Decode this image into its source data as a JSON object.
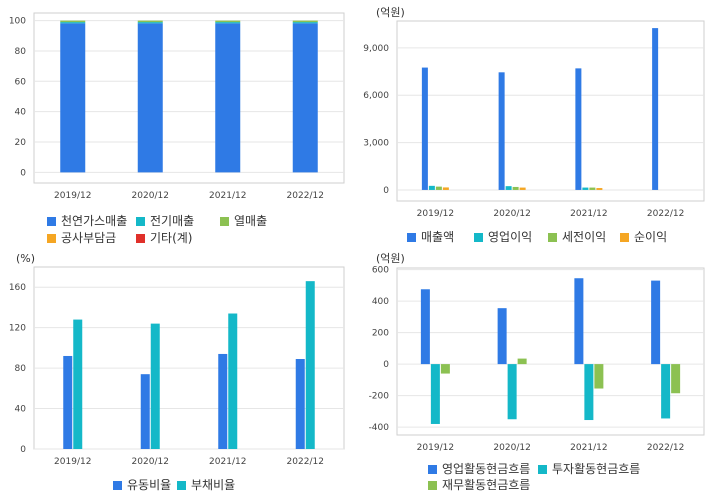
{
  "chart_data": [
    {
      "id": "c1",
      "type": "bar",
      "stacked": true,
      "unit": "",
      "categories": [
        "2019/12",
        "2020/12",
        "2021/12",
        "2022/12"
      ],
      "yticks": [
        0,
        20,
        40,
        60,
        80,
        100
      ],
      "ylim": [
        -7,
        105
      ],
      "grid": true,
      "series": [
        {
          "name": "천연가스매출",
          "color": "#2f7ae5",
          "values": [
            98.2,
            98.2,
            98.2,
            98.2
          ]
        },
        {
          "name": "전기매출",
          "color": "#14b8c8",
          "values": [
            0.8,
            0.8,
            0.8,
            0.8
          ]
        },
        {
          "name": "열매출",
          "color": "#8cc152",
          "values": [
            1.0,
            1.0,
            1.0,
            1.0
          ]
        },
        {
          "name": "공사부담금",
          "color": "#f5a623",
          "values": [
            0,
            0,
            0,
            0
          ]
        },
        {
          "name": "기타(계)",
          "color": "#e0302a",
          "values": [
            0,
            0,
            0,
            0
          ]
        }
      ]
    },
    {
      "id": "c2",
      "type": "bar",
      "stacked": false,
      "unit": "(억원)",
      "categories": [
        "2019/12",
        "2020/12",
        "2021/12",
        "2022/12"
      ],
      "yticks": [
        0,
        3000,
        6000,
        9000
      ],
      "ytick_labels": [
        "0",
        "3,000",
        "6,000",
        "9,000"
      ],
      "ylim": [
        -700,
        10700
      ],
      "grid": true,
      "series": [
        {
          "name": "매출액",
          "color": "#2f7ae5",
          "values": [
            7750,
            7450,
            7700,
            10250
          ]
        },
        {
          "name": "영업이익",
          "color": "#14b8c8",
          "values": [
            260,
            240,
            150,
            0
          ]
        },
        {
          "name": "세전이익",
          "color": "#8cc152",
          "values": [
            210,
            190,
            150,
            0
          ]
        },
        {
          "name": "순이익",
          "color": "#f5a623",
          "values": [
            160,
            150,
            120,
            0
          ]
        }
      ]
    },
    {
      "id": "c3",
      "type": "bar",
      "stacked": false,
      "unit": "(%)",
      "categories": [
        "2019/12",
        "2020/12",
        "2021/12",
        "2022/12"
      ],
      "yticks": [
        0,
        40,
        80,
        120,
        160
      ],
      "ylim": [
        0,
        180
      ],
      "grid": true,
      "series": [
        {
          "name": "유동비율",
          "color": "#2f7ae5",
          "values": [
            92,
            74,
            94,
            89
          ]
        },
        {
          "name": "부채비율",
          "color": "#14b8c8",
          "values": [
            128,
            124,
            134,
            166
          ]
        }
      ]
    },
    {
      "id": "c4",
      "type": "bar",
      "stacked": false,
      "unit": "(억원)",
      "categories": [
        "2019/12",
        "2020/12",
        "2021/12",
        "2022/12"
      ],
      "yticks": [
        -400,
        -200,
        0,
        200,
        400,
        600
      ],
      "ylim": [
        -450,
        610
      ],
      "grid": true,
      "series": [
        {
          "name": "영업활동현금흐름",
          "color": "#2f7ae5",
          "values": [
            475,
            355,
            545,
            530
          ]
        },
        {
          "name": "투자활동현금흐름",
          "color": "#14b8c8",
          "values": [
            -380,
            -350,
            -355,
            -345
          ]
        },
        {
          "name": "재무활동현금흐름",
          "color": "#8cc152",
          "values": [
            -60,
            35,
            -155,
            -185
          ]
        }
      ]
    }
  ]
}
